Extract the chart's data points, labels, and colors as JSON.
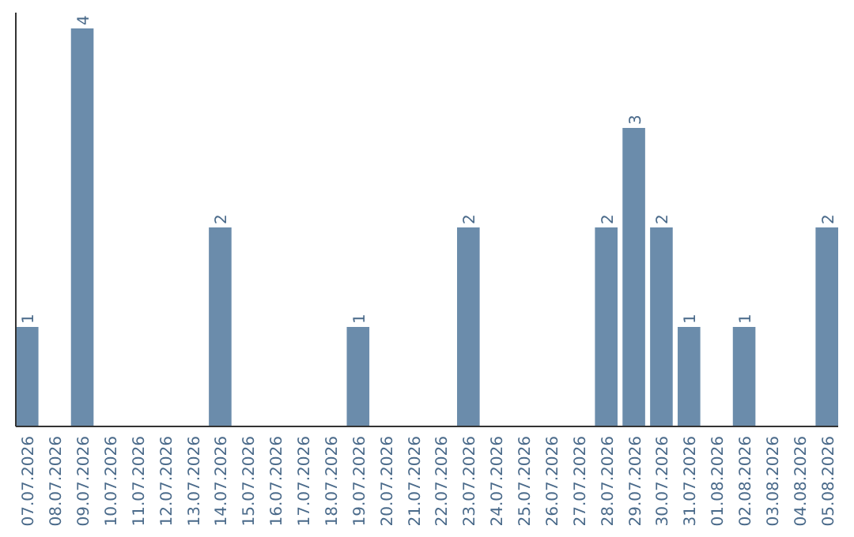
{
  "chart_data": {
    "type": "bar",
    "categories": [
      "07.07.2026",
      "08.07.2026",
      "09.07.2026",
      "10.07.2026",
      "11.07.2026",
      "12.07.2026",
      "13.07.2026",
      "14.07.2026",
      "15.07.2026",
      "16.07.2026",
      "17.07.2026",
      "18.07.2026",
      "19.07.2026",
      "20.07.2026",
      "21.07.2026",
      "22.07.2026",
      "23.07.2026",
      "24.07.2026",
      "25.07.2026",
      "26.07.2026",
      "27.07.2026",
      "28.07.2026",
      "29.07.2026",
      "30.07.2026",
      "31.07.2026",
      "01.08.2026",
      "02.08.2026",
      "03.08.2026",
      "04.08.2026",
      "05.08.2026"
    ],
    "values": [
      1,
      null,
      4,
      null,
      null,
      null,
      null,
      2,
      null,
      null,
      null,
      null,
      1,
      null,
      null,
      null,
      2,
      null,
      null,
      null,
      null,
      2,
      3,
      2,
      1,
      null,
      1,
      null,
      null,
      2
    ],
    "color": "#6b8cab",
    "ylim": [
      0,
      4
    ],
    "data_labels": true,
    "tick_labels": "x"
  }
}
